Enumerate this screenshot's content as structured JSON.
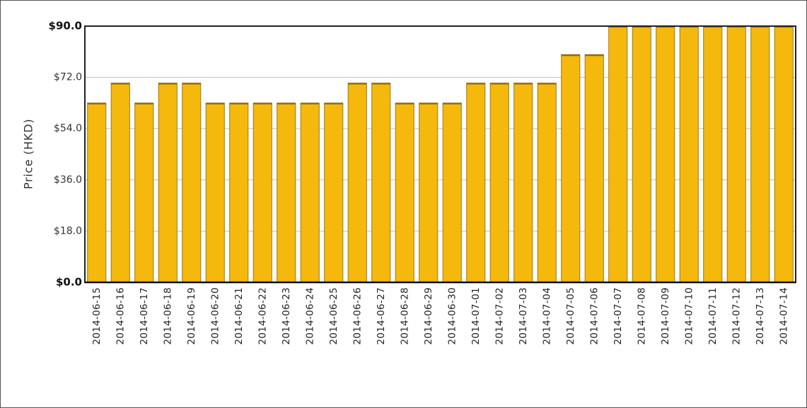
{
  "chart_data": {
    "type": "bar",
    "ylabel": "Price (HKD)",
    "ylim": [
      0,
      90
    ],
    "yticks": [
      "$0.0",
      "$18.0",
      "$36.0",
      "$54.0",
      "$72.0",
      "$90.0"
    ],
    "yticks_values": [
      0,
      18,
      36,
      54,
      72,
      90
    ],
    "grid": true,
    "bar_color": "#F5B80C",
    "bar_edge_color": "#9A7A1E",
    "categories": [
      "2014-06-15",
      "2014-06-16",
      "2014-06-17",
      "2014-06-18",
      "2014-06-19",
      "2014-06-20",
      "2014-06-21",
      "2014-06-22",
      "2014-06-23",
      "2014-06-24",
      "2014-06-25",
      "2014-06-26",
      "2014-06-27",
      "2014-06-28",
      "2014-06-29",
      "2014-06-30",
      "2014-07-01",
      "2014-07-02",
      "2014-07-03",
      "2014-07-04",
      "2014-07-05",
      "2014-07-06",
      "2014-07-07",
      "2014-07-08",
      "2014-07-09",
      "2014-07-10",
      "2014-07-11",
      "2014-07-12",
      "2014-07-13",
      "2014-07-14"
    ],
    "values": [
      63,
      70,
      63,
      70,
      70,
      63,
      63,
      63,
      63,
      63,
      63,
      70,
      70,
      63,
      63,
      63,
      70,
      70,
      70,
      70,
      80,
      80,
      90,
      90,
      90,
      90,
      90,
      90,
      90,
      90
    ]
  }
}
